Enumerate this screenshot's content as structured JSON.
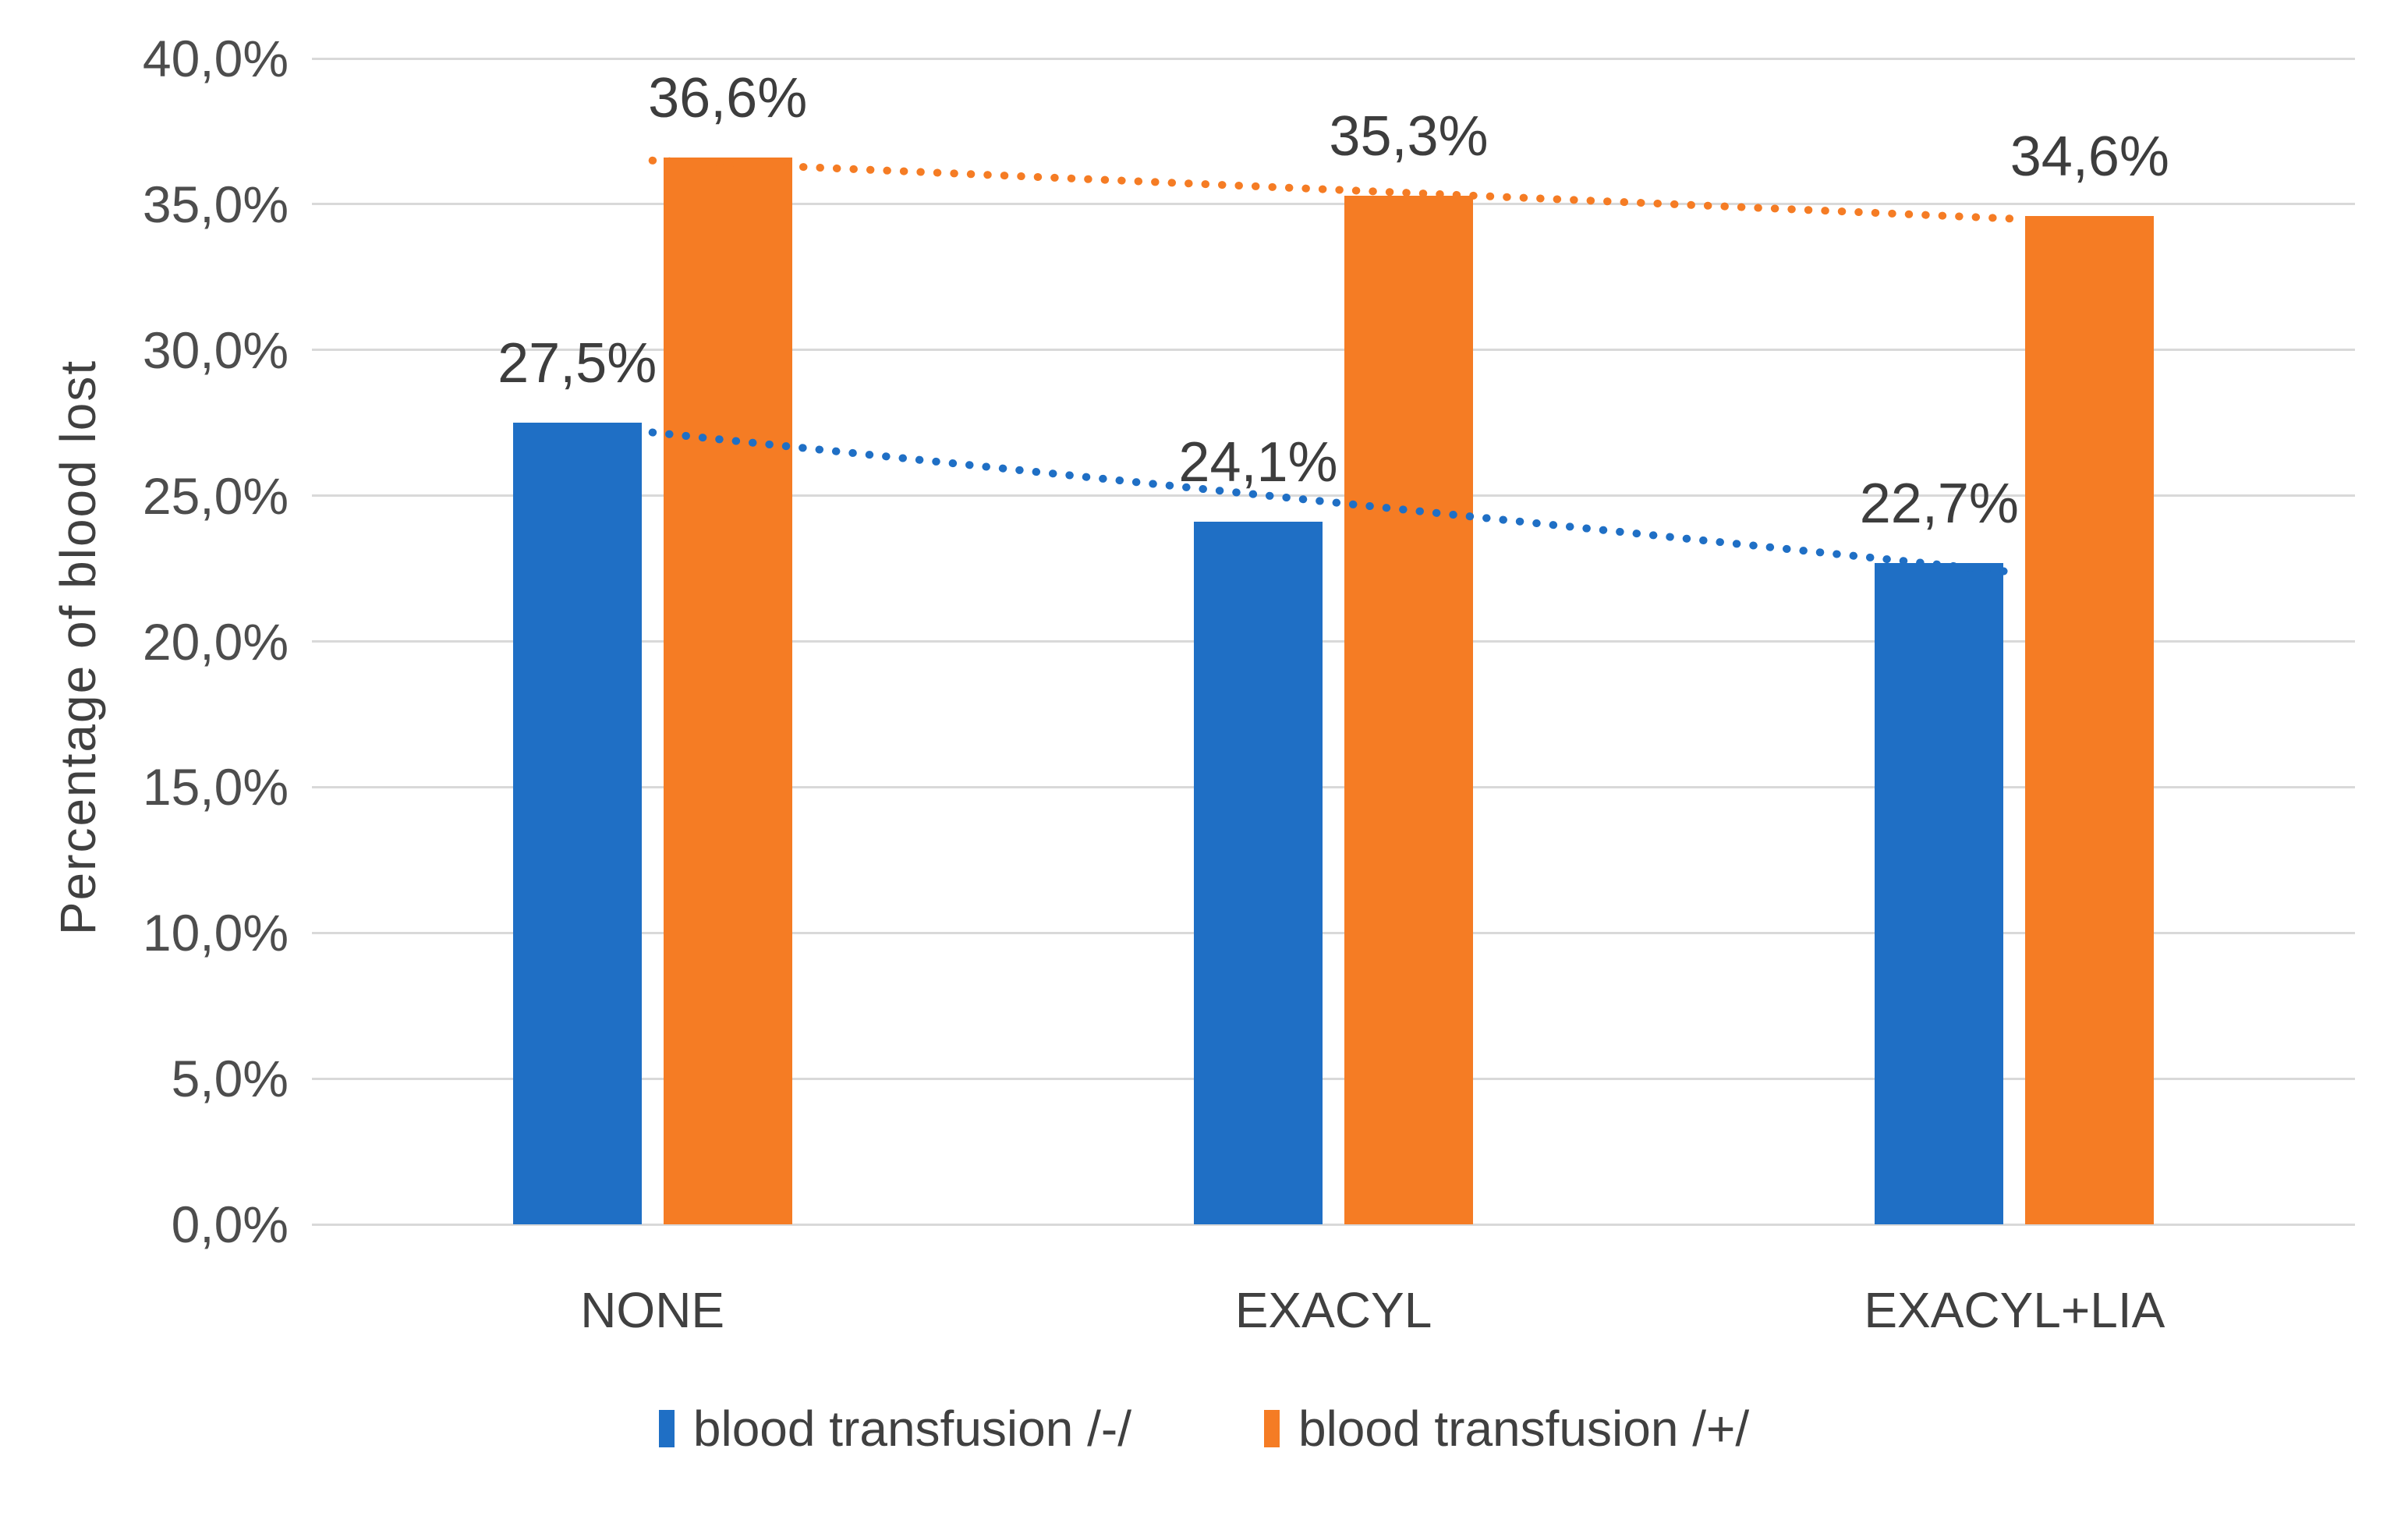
{
  "figure": {
    "background": "#ffffff"
  },
  "colors": {
    "gridline": "#d9d9d9",
    "text": "#404040",
    "tick_text": "#4d4d4d"
  },
  "chart_data": {
    "type": "bar",
    "title": "",
    "xlabel": "",
    "ylabel": "Percentage of blood lost",
    "categories": [
      "NONE",
      "EXACYL",
      "EXACYL+LIA"
    ],
    "series": [
      {
        "name": "blood transfusion /-/",
        "color": "#1f6fc5",
        "values": [
          27.5,
          24.1,
          22.7
        ],
        "labels": [
          "27,5%",
          "24,1%",
          "22,7%"
        ],
        "trendline": {
          "type": "linear",
          "style": "dotted",
          "start_value": 27.17,
          "end_value": 22.37
        }
      },
      {
        "name": "blood transfusion /+/",
        "color": "#f57c24",
        "values": [
          36.6,
          35.3,
          34.6
        ],
        "labels": [
          "36,6%",
          "35,3%",
          "34,6%"
        ],
        "trendline": {
          "type": "linear",
          "style": "dotted",
          "start_value": 36.5,
          "end_value": 34.5
        }
      }
    ],
    "y_axis": {
      "min": 0,
      "max": 40,
      "step": 5,
      "tick_labels": [
        "0,0%",
        "5,0%",
        "10,0%",
        "15,0%",
        "20,0%",
        "25,0%",
        "30,0%",
        "35,0%",
        "40,0%"
      ],
      "grid": true
    },
    "legend_position": "bottom"
  }
}
